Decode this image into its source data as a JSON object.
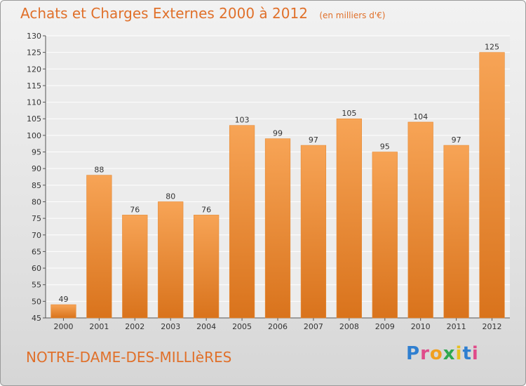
{
  "header": {
    "title": "Achats et Charges Externes 2000 à 2012",
    "unit": "(en milliers d'€)"
  },
  "footer": {
    "place": "NOTRE-DAME-DES-MILLIèRES",
    "logo": "Proxiti"
  },
  "colors": {
    "bar_light": "#f7a456",
    "bar_dark": "#d9731c",
    "text": "#e0702a"
  },
  "chart_data": {
    "type": "bar",
    "categories": [
      "2000",
      "2001",
      "2002",
      "2003",
      "2004",
      "2005",
      "2006",
      "2007",
      "2008",
      "2009",
      "2010",
      "2011",
      "2012"
    ],
    "values": [
      49,
      88,
      76,
      80,
      76,
      103,
      99,
      97,
      105,
      95,
      104,
      97,
      125
    ],
    "ylim": [
      45,
      130
    ],
    "yticks": [
      45,
      50,
      55,
      60,
      65,
      70,
      75,
      80,
      85,
      90,
      95,
      100,
      105,
      110,
      115,
      120,
      125,
      130
    ],
    "grid": true,
    "legend": "none"
  }
}
